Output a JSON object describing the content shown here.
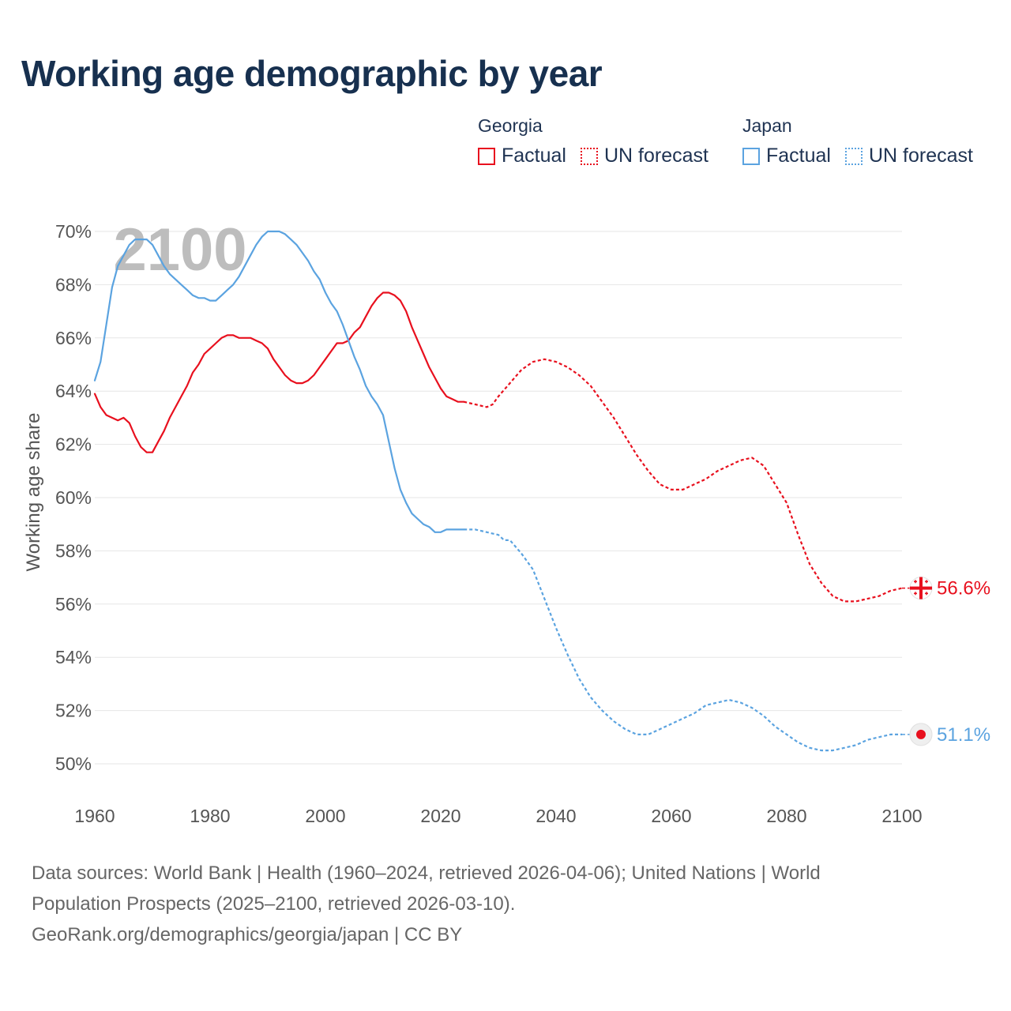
{
  "title": "Working age demographic by year",
  "legend": {
    "georgia": {
      "country": "Georgia",
      "factual": "Factual",
      "forecast": "UN forecast"
    },
    "japan": {
      "country": "Japan",
      "factual": "Factual",
      "forecast": "UN forecast"
    }
  },
  "year_watermark": "2100",
  "end_labels": {
    "georgia": "56.6%",
    "japan": "51.1%"
  },
  "footer": {
    "line1": "Data sources: World Bank | Health (1960–2024, retrieved 2026-04-06); United Nations | World",
    "line2": "Population Prospects (2025–2100, retrieved 2026-03-10).",
    "line3": "GeoRank.org/demographics/georgia/japan | CC BY"
  },
  "colors": {
    "georgia": "#e8101e",
    "japan": "#5ba3e0",
    "grid": "#e6e6e6",
    "axis_text": "#555555"
  },
  "chart_data": {
    "type": "line",
    "title": "Working age demographic by year",
    "xlabel": "",
    "ylabel": "Working age share",
    "xlim": [
      1960,
      2100
    ],
    "ylim": [
      50,
      70
    ],
    "x_ticks": [
      1960,
      1980,
      2000,
      2020,
      2040,
      2060,
      2080,
      2100
    ],
    "x_tick_labels": [
      "1960",
      "1980",
      "2000",
      "2020",
      "2040",
      "2060",
      "2080",
      "2100"
    ],
    "y_ticks": [
      50,
      52,
      54,
      56,
      58,
      60,
      62,
      64,
      66,
      68,
      70
    ],
    "y_tick_labels": [
      "50%",
      "52%",
      "54%",
      "56%",
      "58%",
      "60%",
      "62%",
      "64%",
      "66%",
      "68%",
      "70%"
    ],
    "series": [
      {
        "name": "Georgia Factual",
        "country": "Georgia",
        "kind": "factual",
        "x": [
          1960,
          1961,
          1962,
          1963,
          1964,
          1965,
          1966,
          1967,
          1968,
          1969,
          1970,
          1971,
          1972,
          1973,
          1974,
          1975,
          1976,
          1977,
          1978,
          1979,
          1980,
          1981,
          1982,
          1983,
          1984,
          1985,
          1986,
          1987,
          1988,
          1989,
          1990,
          1991,
          1992,
          1993,
          1994,
          1995,
          1996,
          1997,
          1998,
          1999,
          2000,
          2001,
          2002,
          2003,
          2004,
          2005,
          2006,
          2007,
          2008,
          2009,
          2010,
          2011,
          2012,
          2013,
          2014,
          2015,
          2016,
          2017,
          2018,
          2019,
          2020,
          2021,
          2022,
          2023,
          2024
        ],
        "values": [
          63.9,
          63.4,
          63.1,
          63.0,
          62.9,
          63.0,
          62.8,
          62.3,
          61.9,
          61.7,
          61.7,
          62.1,
          62.5,
          63.0,
          63.4,
          63.8,
          64.2,
          64.7,
          65.0,
          65.4,
          65.6,
          65.8,
          66.0,
          66.1,
          66.1,
          66.0,
          66.0,
          66.0,
          65.9,
          65.8,
          65.6,
          65.2,
          64.9,
          64.6,
          64.4,
          64.3,
          64.3,
          64.4,
          64.6,
          64.9,
          65.2,
          65.5,
          65.8,
          65.8,
          65.9,
          66.2,
          66.4,
          66.8,
          67.2,
          67.5,
          67.7,
          67.7,
          67.6,
          67.4,
          67.0,
          66.4,
          65.9,
          65.4,
          64.9,
          64.5,
          64.1,
          63.8,
          63.7,
          63.6,
          63.6
        ]
      },
      {
        "name": "Georgia UN forecast",
        "country": "Georgia",
        "kind": "forecast",
        "x": [
          2024,
          2026,
          2028,
          2029,
          2030,
          2032,
          2034,
          2036,
          2038,
          2040,
          2042,
          2044,
          2046,
          2048,
          2050,
          2052,
          2054,
          2056,
          2058,
          2060,
          2062,
          2064,
          2066,
          2068,
          2070,
          2072,
          2074,
          2076,
          2078,
          2080,
          2082,
          2084,
          2086,
          2088,
          2090,
          2092,
          2094,
          2096,
          2098,
          2100
        ],
        "values": [
          63.6,
          63.5,
          63.4,
          63.5,
          63.8,
          64.3,
          64.8,
          65.1,
          65.2,
          65.1,
          64.9,
          64.6,
          64.2,
          63.6,
          63.0,
          62.3,
          61.6,
          61.0,
          60.5,
          60.3,
          60.3,
          60.5,
          60.7,
          61.0,
          61.2,
          61.4,
          61.5,
          61.2,
          60.5,
          59.8,
          58.6,
          57.5,
          56.8,
          56.3,
          56.1,
          56.1,
          56.2,
          56.3,
          56.5,
          56.6
        ]
      },
      {
        "name": "Japan Factual",
        "country": "Japan",
        "kind": "factual",
        "x": [
          1960,
          1961,
          1962,
          1963,
          1964,
          1965,
          1966,
          1967,
          1968,
          1969,
          1970,
          1971,
          1972,
          1973,
          1974,
          1975,
          1976,
          1977,
          1978,
          1979,
          1980,
          1981,
          1982,
          1983,
          1984,
          1985,
          1986,
          1987,
          1988,
          1989,
          1990,
          1991,
          1992,
          1993,
          1994,
          1995,
          1996,
          1997,
          1998,
          1999,
          2000,
          2001,
          2002,
          2003,
          2004,
          2005,
          2006,
          2007,
          2008,
          2009,
          2010,
          2011,
          2012,
          2013,
          2014,
          2015,
          2016,
          2017,
          2018,
          2019,
          2020,
          2021,
          2022,
          2023,
          2024
        ],
        "values": [
          64.4,
          65.1,
          66.5,
          67.9,
          68.7,
          69.1,
          69.5,
          69.7,
          69.7,
          69.7,
          69.5,
          69.1,
          68.7,
          68.4,
          68.2,
          68.0,
          67.8,
          67.6,
          67.5,
          67.5,
          67.4,
          67.4,
          67.6,
          67.8,
          68.0,
          68.3,
          68.7,
          69.1,
          69.5,
          69.8,
          70.0,
          70.0,
          70.0,
          69.9,
          69.7,
          69.5,
          69.2,
          68.9,
          68.5,
          68.2,
          67.7,
          67.3,
          67.0,
          66.5,
          65.9,
          65.3,
          64.8,
          64.2,
          63.8,
          63.5,
          63.1,
          62.1,
          61.1,
          60.3,
          59.8,
          59.4,
          59.2,
          59.0,
          58.9,
          58.7,
          58.7,
          58.8,
          58.8,
          58.8,
          58.8
        ]
      },
      {
        "name": "Japan UN forecast",
        "country": "Japan",
        "kind": "forecast",
        "x": [
          2024,
          2026,
          2028,
          2030,
          2031,
          2032,
          2034,
          2036,
          2038,
          2040,
          2042,
          2044,
          2046,
          2048,
          2050,
          2052,
          2054,
          2056,
          2058,
          2060,
          2062,
          2064,
          2066,
          2068,
          2070,
          2072,
          2074,
          2076,
          2078,
          2080,
          2082,
          2084,
          2086,
          2088,
          2090,
          2092,
          2094,
          2096,
          2098,
          2100
        ],
        "values": [
          58.8,
          58.8,
          58.7,
          58.6,
          58.4,
          58.4,
          57.9,
          57.3,
          56.2,
          55.1,
          54.1,
          53.2,
          52.5,
          52.0,
          51.6,
          51.3,
          51.1,
          51.1,
          51.3,
          51.5,
          51.7,
          51.9,
          52.2,
          52.3,
          52.4,
          52.3,
          52.1,
          51.8,
          51.4,
          51.1,
          50.8,
          50.6,
          50.5,
          50.5,
          50.6,
          50.7,
          50.9,
          51.0,
          51.1,
          51.1
        ]
      }
    ],
    "end_values": {
      "Georgia": 56.6,
      "Japan": 51.1
    }
  }
}
